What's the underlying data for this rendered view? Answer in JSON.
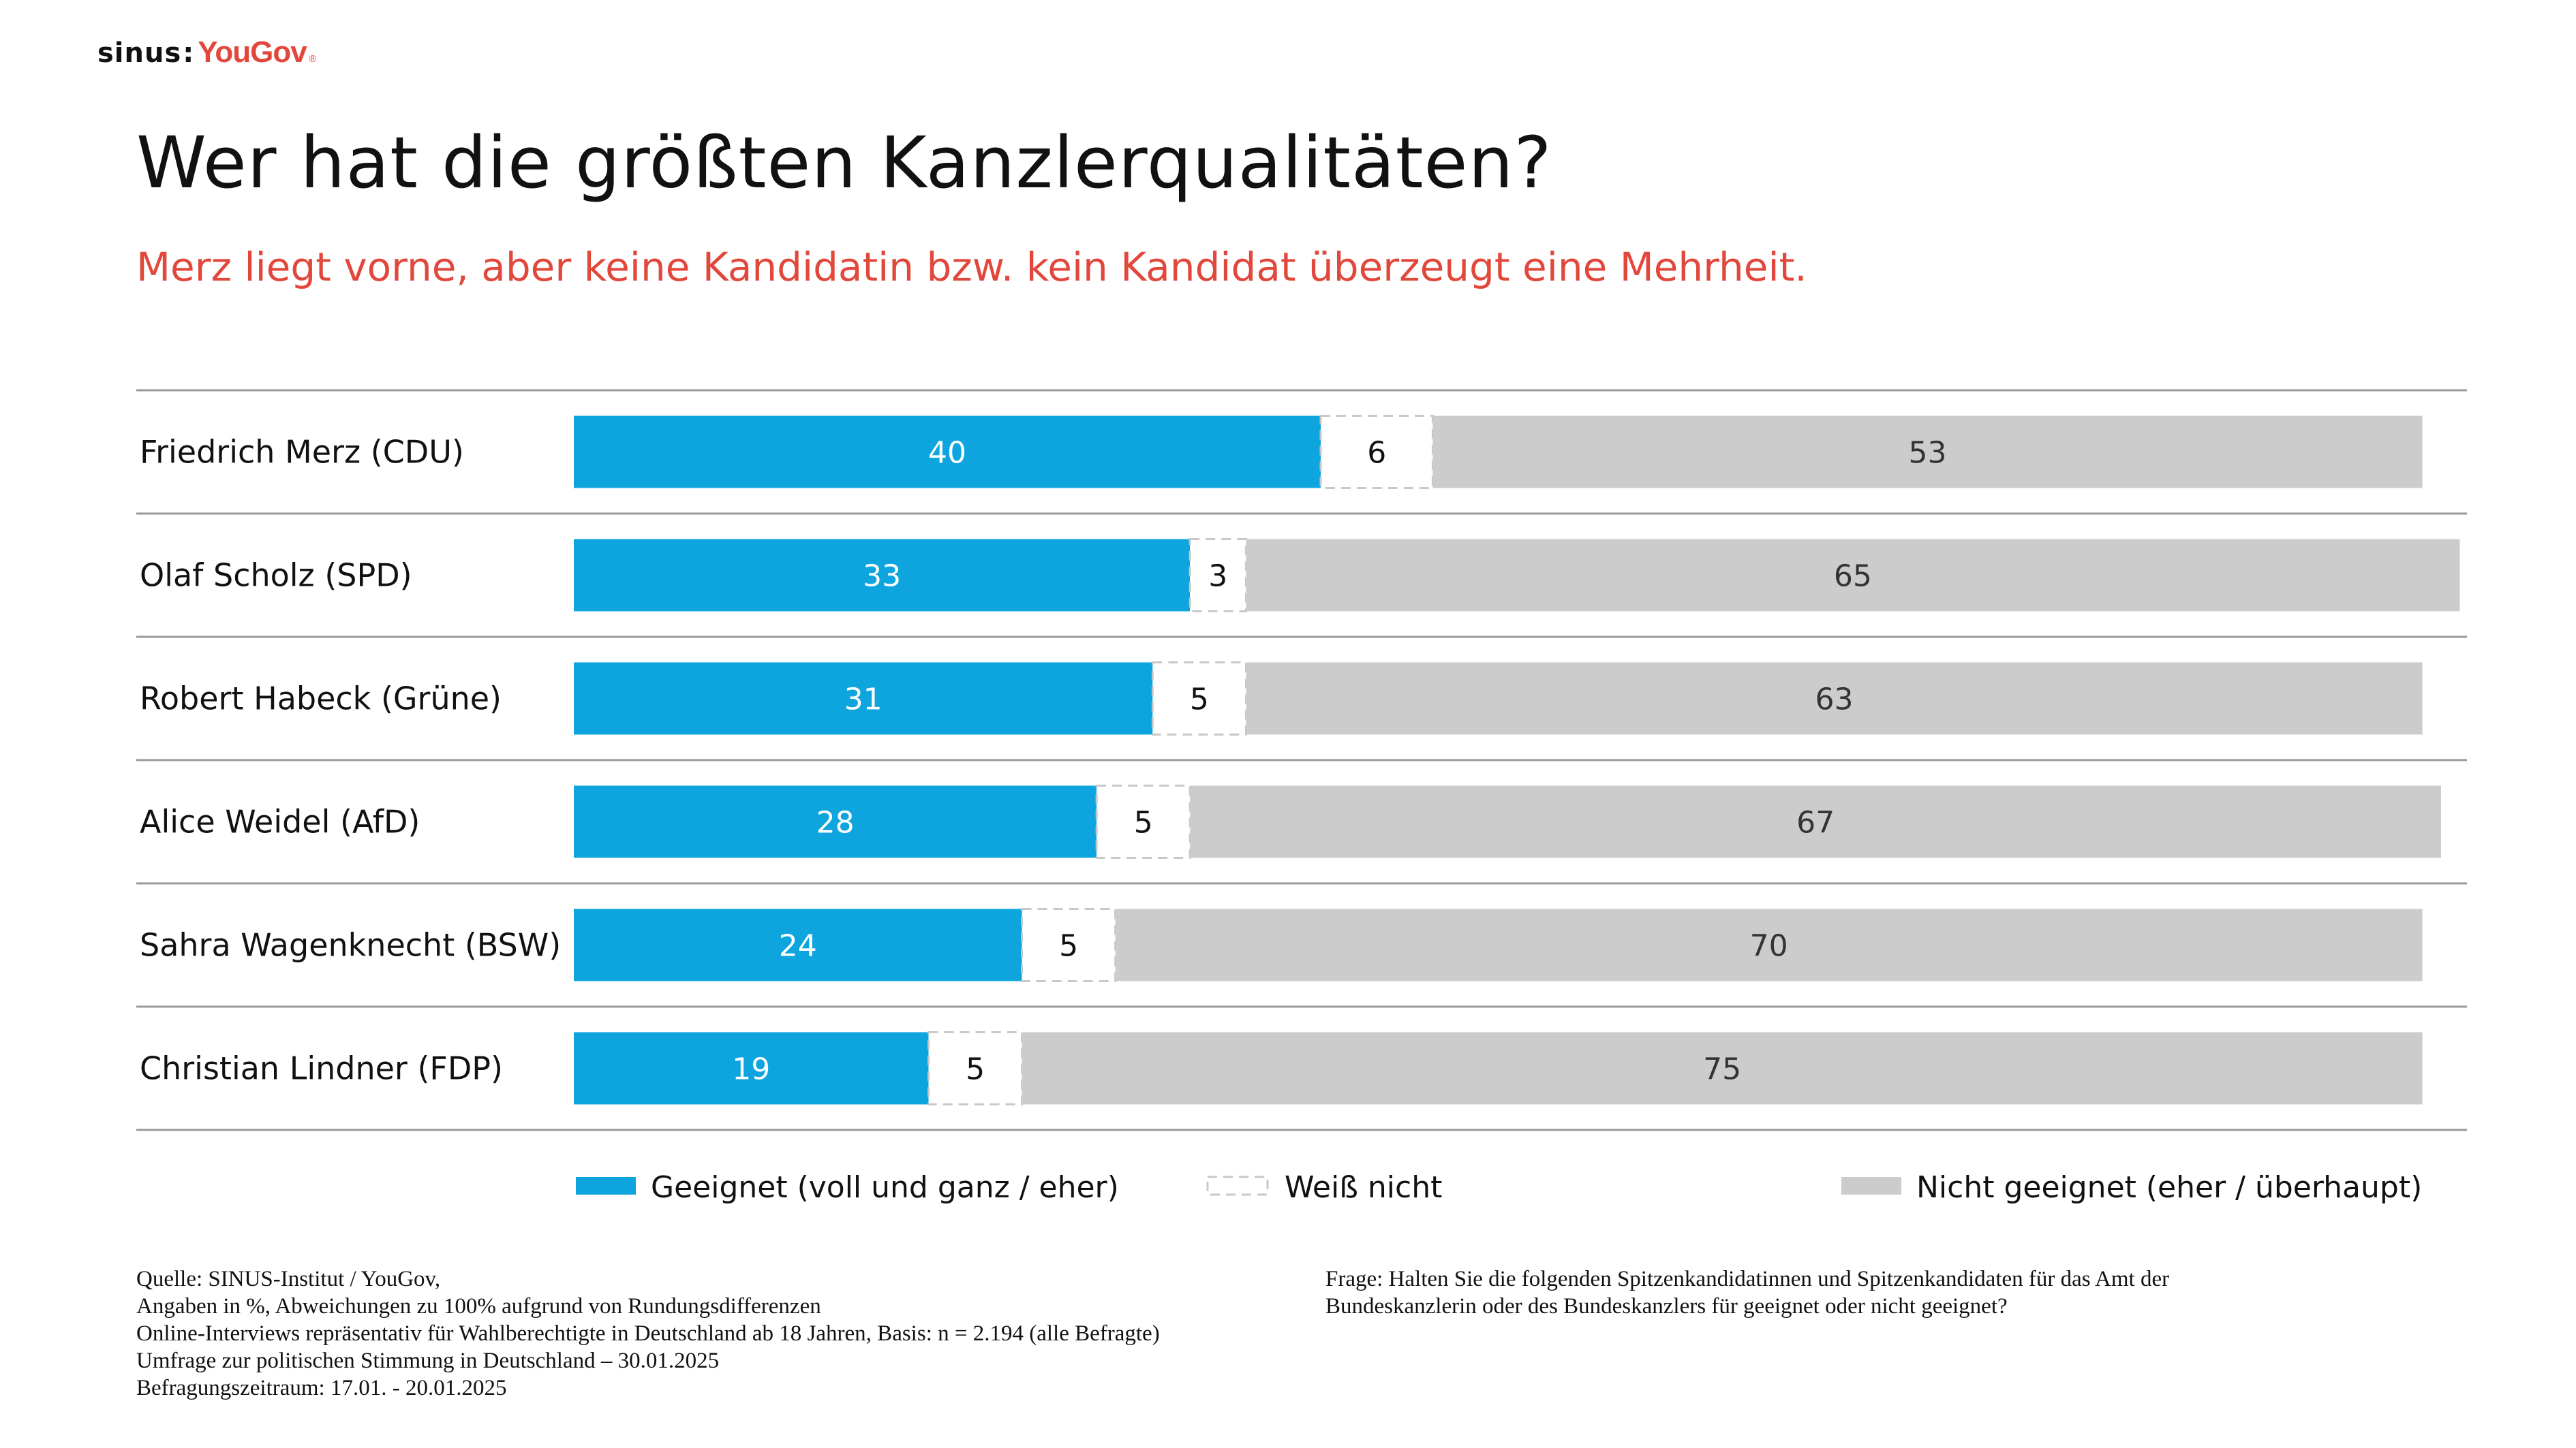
{
  "brand": {
    "part1": "sinus",
    "separator": ":",
    "part2": "YouGov",
    "registered": "®"
  },
  "title": "Wer hat die größten Kanzlerqualitäten?",
  "subtitle": "Merz liegt vorne, aber keine Kandidatin bzw. kein Kandidat überzeugt eine Mehrheit.",
  "colors": {
    "geeignet": "#0ea5df",
    "weiss_nicht": "#ffffff",
    "nicht_geeignet": "#cccccc",
    "accent": "#e2473c",
    "rule": "#9a9a9a"
  },
  "chart_data": {
    "type": "bar",
    "orientation": "horizontal",
    "stacked": true,
    "categories": [
      "Friedrich Merz (CDU)",
      "Olaf Scholz (SPD)",
      "Robert Habeck (Grüne)",
      "Alice Weidel (AfD)",
      "Sahra Wagenknecht (BSW)",
      "Christian Lindner (FDP)"
    ],
    "series": [
      {
        "name": "Geeignet (voll und ganz / eher)",
        "values": [
          40,
          33,
          31,
          28,
          24,
          19
        ]
      },
      {
        "name": "Weiß nicht",
        "values": [
          6,
          3,
          5,
          5,
          5,
          5
        ]
      },
      {
        "name": "Nicht geeignet (eher / überhaupt)",
        "values": [
          53,
          65,
          63,
          67,
          70,
          75
        ]
      }
    ],
    "legend_position": "bottom",
    "unit": "%"
  },
  "footer": {
    "left": [
      "Quelle: SINUS-Institut / YouGov,",
      "Angaben in %, Abweichungen zu 100% aufgrund von Rundungsdifferenzen",
      "Online-Interviews repräsentativ für Wahlberechtigte in Deutschland ab 18 Jahren, Basis: n = 2.194 (alle Befragte)",
      "Umfrage zur politischen Stimmung in Deutschland – 30.01.2025",
      "Befragungszeitraum: 17.01. - 20.01.2025"
    ],
    "right": [
      "Frage: Halten Sie die folgenden Spitzenkandidatinnen und Spitzenkandidaten für das Amt der",
      "Bundeskanzlerin oder des Bundeskanzlers für geeignet oder nicht geeignet?"
    ]
  }
}
